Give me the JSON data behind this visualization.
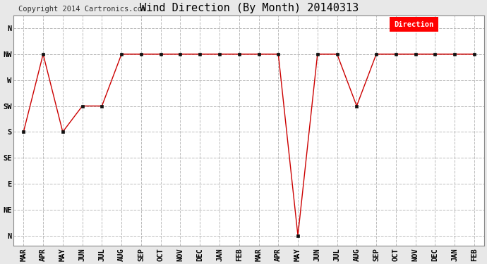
{
  "title": "Wind Direction (By Month) 20140313",
  "copyright": "Copyright 2014 Cartronics.com",
  "legend_label": "Direction",
  "legend_bg": "#ff0000",
  "legend_text_color": "#ffffff",
  "x_labels": [
    "MAR",
    "APR",
    "MAY",
    "JUN",
    "JUL",
    "AUG",
    "SEP",
    "OCT",
    "NOV",
    "DEC",
    "JAN",
    "FEB",
    "MAR",
    "APR",
    "MAY",
    "JUN",
    "JUL",
    "AUG",
    "SEP",
    "OCT",
    "NOV",
    "DEC",
    "JAN",
    "FEB"
  ],
  "y_tick_positions": [
    8,
    7,
    6,
    5,
    4,
    3,
    2,
    1,
    0
  ],
  "y_tick_labels": [
    "N",
    "NW",
    "W",
    "SW",
    "S",
    "SE",
    "E",
    "NE",
    "N"
  ],
  "data_values": [
    4,
    7,
    4,
    5,
    5,
    7,
    7,
    7,
    7,
    7,
    7,
    7,
    7,
    7,
    0,
    7,
    7,
    5,
    7,
    7,
    7,
    7,
    7,
    7
  ],
  "line_color": "#cc0000",
  "marker": "s",
  "marker_size": 3,
  "bg_color": "#e8e8e8",
  "plot_bg": "#ffffff",
  "grid_color": "#bbbbbb",
  "title_fontsize": 11,
  "axis_fontsize": 7.5,
  "copyright_fontsize": 7.5
}
